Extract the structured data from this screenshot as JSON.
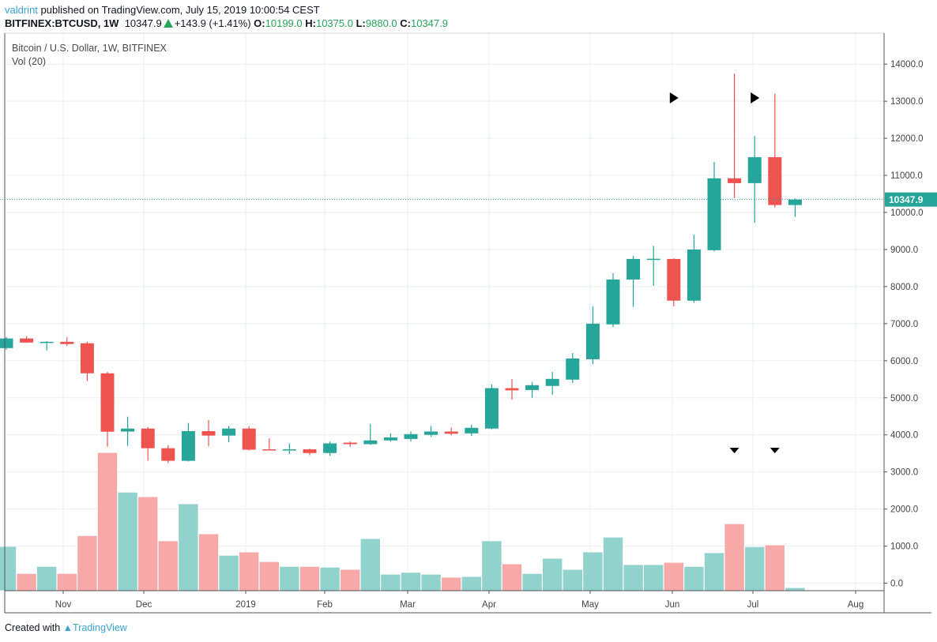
{
  "header": {
    "user": "valdrint",
    "published": "published on TradingView.com, July 15, 2019 10:00:54 CEST",
    "symbol": "BITFINEX:BTCUSD, 1W",
    "last": "10347.9",
    "change": "+143.9 (+1.41%)",
    "o_label": "O:",
    "o": "10199.0",
    "h_label": "H:",
    "h": "10375.0",
    "l_label": "L:",
    "l": "9880.0",
    "c_label": "C:",
    "c": "10347.9"
  },
  "legend": {
    "title": "Bitcoin / U.S. Dollar, 1W, BITFINEX",
    "volume": "Vol (20)"
  },
  "footer": {
    "created_with": "Created with",
    "brand": "TradingView"
  },
  "colors": {
    "up": "#26a69a",
    "down": "#ef5350",
    "up_volume": "#91d3cc",
    "down_volume": "#f7a9a7",
    "grid": "#e8eff6",
    "accent": "#3ba3d0",
    "positive_text": "#26a65b"
  },
  "chart_data": {
    "type": "candlestick",
    "interval": "1W",
    "ylim": [
      0,
      14000
    ],
    "y_ticks": [
      "14000.0",
      "13000.0",
      "12000.0",
      "11000.0",
      "10000.0",
      "9000.0",
      "8000.0",
      "7000.0",
      "6000.0",
      "5000.0",
      "4000.0",
      "3000.0",
      "2000.0",
      "1000.0",
      "0.0"
    ],
    "x_ticks": [
      "Nov",
      "Dec",
      "2019",
      "Feb",
      "Mar",
      "Apr",
      "May",
      "Jun",
      "Jul",
      "Aug"
    ],
    "grid": true,
    "last_price_label": "10347.9",
    "candles": [
      {
        "o": 6340,
        "h": 6640,
        "l": 6300,
        "c": 6600
      },
      {
        "o": 6600,
        "h": 6660,
        "l": 6480,
        "c": 6490
      },
      {
        "o": 6490,
        "h": 6530,
        "l": 6280,
        "c": 6510
      },
      {
        "o": 6510,
        "h": 6640,
        "l": 6400,
        "c": 6450
      },
      {
        "o": 6470,
        "h": 6510,
        "l": 5450,
        "c": 5660
      },
      {
        "o": 5660,
        "h": 5700,
        "l": 3680,
        "c": 4085
      },
      {
        "o": 4090,
        "h": 4490,
        "l": 3700,
        "c": 4170
      },
      {
        "o": 4170,
        "h": 4210,
        "l": 3300,
        "c": 3640
      },
      {
        "o": 3640,
        "h": 3720,
        "l": 3240,
        "c": 3300
      },
      {
        "o": 3300,
        "h": 4320,
        "l": 3280,
        "c": 4100
      },
      {
        "o": 4100,
        "h": 4400,
        "l": 3700,
        "c": 3980
      },
      {
        "o": 3980,
        "h": 4240,
        "l": 3800,
        "c": 4170
      },
      {
        "o": 4170,
        "h": 4230,
        "l": 3580,
        "c": 3600
      },
      {
        "o": 3610,
        "h": 3910,
        "l": 3580,
        "c": 3590
      },
      {
        "o": 3590,
        "h": 3770,
        "l": 3490,
        "c": 3610
      },
      {
        "o": 3610,
        "h": 3630,
        "l": 3450,
        "c": 3510
      },
      {
        "o": 3510,
        "h": 3820,
        "l": 3440,
        "c": 3770
      },
      {
        "o": 3790,
        "h": 3820,
        "l": 3680,
        "c": 3750
      },
      {
        "o": 3750,
        "h": 4300,
        "l": 3730,
        "c": 3850
      },
      {
        "o": 3850,
        "h": 4040,
        "l": 3820,
        "c": 3930
      },
      {
        "o": 3890,
        "h": 4090,
        "l": 3820,
        "c": 4020
      },
      {
        "o": 4000,
        "h": 4240,
        "l": 3950,
        "c": 4090
      },
      {
        "o": 4090,
        "h": 4200,
        "l": 3990,
        "c": 4030
      },
      {
        "o": 4040,
        "h": 4280,
        "l": 3970,
        "c": 4190
      },
      {
        "o": 4170,
        "h": 5360,
        "l": 4150,
        "c": 5260
      },
      {
        "o": 5260,
        "h": 5510,
        "l": 4950,
        "c": 5200
      },
      {
        "o": 5210,
        "h": 5430,
        "l": 5000,
        "c": 5340
      },
      {
        "o": 5320,
        "h": 5700,
        "l": 5085,
        "c": 5510
      },
      {
        "o": 5490,
        "h": 6210,
        "l": 5400,
        "c": 6060
      },
      {
        "o": 6040,
        "h": 7470,
        "l": 5910,
        "c": 7000
      },
      {
        "o": 6980,
        "h": 8360,
        "l": 6910,
        "c": 8190
      },
      {
        "o": 8190,
        "h": 8830,
        "l": 7450,
        "c": 8745
      },
      {
        "o": 8730,
        "h": 9100,
        "l": 8020,
        "c": 8750
      },
      {
        "o": 8745,
        "h": 8760,
        "l": 7470,
        "c": 7620
      },
      {
        "o": 7620,
        "h": 9400,
        "l": 7560,
        "c": 9000
      },
      {
        "o": 8980,
        "h": 11360,
        "l": 8950,
        "c": 10920
      },
      {
        "o": 10920,
        "h": 13750,
        "l": 10380,
        "c": 10790
      },
      {
        "o": 10790,
        "h": 12060,
        "l": 9720,
        "c": 11490
      },
      {
        "o": 11490,
        "h": 13200,
        "l": 10130,
        "c": 10200
      },
      {
        "o": 10199,
        "h": 10375,
        "l": 9880,
        "c": 10347.9
      }
    ],
    "volume": [
      1190,
      460,
      650,
      460,
      1480,
      3720,
      2650,
      2530,
      1340,
      2340,
      1530,
      950,
      1040,
      780,
      650,
      650,
      630,
      570,
      1400,
      440,
      490,
      440,
      360,
      380,
      1340,
      720,
      460,
      870,
      570,
      1040,
      1440,
      700,
      700,
      760,
      650,
      1020,
      1800,
      1180,
      1230,
      80
    ],
    "markers": [
      {
        "candle": 33,
        "shape": "triangle-right"
      },
      {
        "candle": 37,
        "shape": "triangle-right"
      },
      {
        "candle": 36,
        "shape": "triangle-down"
      },
      {
        "candle": 38,
        "shape": "triangle-down"
      }
    ]
  }
}
